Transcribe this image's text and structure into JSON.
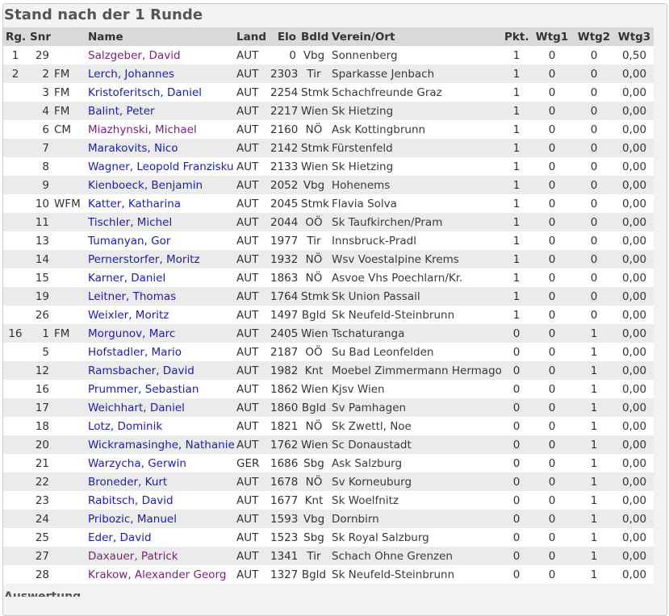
{
  "page": {
    "title": "Stand nach der 1 Runde",
    "footer_partial": "Auswertung"
  },
  "colors": {
    "header_bg": "#d9d9d9",
    "row_alt_bg": "#ebebeb",
    "link": "#1c1cb8",
    "link_visited": "#7a1f7a"
  },
  "table": {
    "headers": {
      "rg": "Rg.",
      "snr": "Snr",
      "title": "",
      "name": "Name",
      "land": "Land",
      "elo": "Elo",
      "bdld": "Bdld",
      "verein": "Verein/Ort",
      "pkt": "Pkt.",
      "wtg1": "Wtg1",
      "wtg2": "Wtg2",
      "wtg3": "Wtg3"
    },
    "rows": [
      {
        "rg": "1",
        "snr": "29",
        "title": "",
        "name": "Salzgeber, David",
        "visited": true,
        "land": "AUT",
        "elo": "0",
        "bdld": "Vbg",
        "verein": "Sonnenberg",
        "pkt": "1",
        "wtg1": "0",
        "wtg2": "0",
        "wtg3": "0,50"
      },
      {
        "rg": "2",
        "snr": "2",
        "title": "FM",
        "name": "Lerch, Johannes",
        "visited": false,
        "land": "AUT",
        "elo": "2303",
        "bdld": "Tir",
        "verein": "Sparkasse Jenbach",
        "pkt": "1",
        "wtg1": "0",
        "wtg2": "0",
        "wtg3": "0,00"
      },
      {
        "rg": "",
        "snr": "3",
        "title": "FM",
        "name": "Kristoferitsch, Daniel",
        "visited": false,
        "land": "AUT",
        "elo": "2254",
        "bdld": "Stmk",
        "verein": "Schachfreunde Graz",
        "pkt": "1",
        "wtg1": "0",
        "wtg2": "0",
        "wtg3": "0,00"
      },
      {
        "rg": "",
        "snr": "4",
        "title": "FM",
        "name": "Balint, Peter",
        "visited": false,
        "land": "AUT",
        "elo": "2217",
        "bdld": "Wien",
        "verein": "Sk Hietzing",
        "pkt": "1",
        "wtg1": "0",
        "wtg2": "0",
        "wtg3": "0,00"
      },
      {
        "rg": "",
        "snr": "6",
        "title": "CM",
        "name": "Miazhynski, Michael",
        "visited": true,
        "land": "AUT",
        "elo": "2160",
        "bdld": "NÖ",
        "verein": "Ask Kottingbrunn",
        "pkt": "1",
        "wtg1": "0",
        "wtg2": "0",
        "wtg3": "0,00"
      },
      {
        "rg": "",
        "snr": "7",
        "title": "",
        "name": "Marakovits, Nico",
        "visited": false,
        "land": "AUT",
        "elo": "2142",
        "bdld": "Stmk",
        "verein": "Fürstenfeld",
        "pkt": "1",
        "wtg1": "0",
        "wtg2": "0",
        "wtg3": "0,00"
      },
      {
        "rg": "",
        "snr": "8",
        "title": "",
        "name": "Wagner, Leopold Franziskus",
        "visited": false,
        "land": "AUT",
        "elo": "2133",
        "bdld": "Wien",
        "verein": "Sk Hietzing",
        "pkt": "1",
        "wtg1": "0",
        "wtg2": "0",
        "wtg3": "0,00"
      },
      {
        "rg": "",
        "snr": "9",
        "title": "",
        "name": "Kienboeck, Benjamin",
        "visited": false,
        "land": "AUT",
        "elo": "2052",
        "bdld": "Vbg",
        "verein": "Hohenems",
        "pkt": "1",
        "wtg1": "0",
        "wtg2": "0",
        "wtg3": "0,00"
      },
      {
        "rg": "",
        "snr": "10",
        "title": "WFM",
        "name": "Katter, Katharina",
        "visited": false,
        "land": "AUT",
        "elo": "2045",
        "bdld": "Stmk",
        "verein": "Flavia Solva",
        "pkt": "1",
        "wtg1": "0",
        "wtg2": "0",
        "wtg3": "0,00"
      },
      {
        "rg": "",
        "snr": "11",
        "title": "",
        "name": "Tischler, Michel",
        "visited": false,
        "land": "AUT",
        "elo": "2044",
        "bdld": "OÖ",
        "verein": "Sk Taufkirchen/Pram",
        "pkt": "1",
        "wtg1": "0",
        "wtg2": "0",
        "wtg3": "0,00"
      },
      {
        "rg": "",
        "snr": "13",
        "title": "",
        "name": "Tumanyan, Gor",
        "visited": false,
        "land": "AUT",
        "elo": "1977",
        "bdld": "Tir",
        "verein": "Innsbruck-Pradl",
        "pkt": "1",
        "wtg1": "0",
        "wtg2": "0",
        "wtg3": "0,00"
      },
      {
        "rg": "",
        "snr": "14",
        "title": "",
        "name": "Pernerstorfer, Moritz",
        "visited": false,
        "land": "AUT",
        "elo": "1932",
        "bdld": "NÖ",
        "verein": "Wsv Voestalpine Krems",
        "pkt": "1",
        "wtg1": "0",
        "wtg2": "0",
        "wtg3": "0,00"
      },
      {
        "rg": "",
        "snr": "15",
        "title": "",
        "name": "Karner, Daniel",
        "visited": false,
        "land": "AUT",
        "elo": "1863",
        "bdld": "NÖ",
        "verein": "Asvoe Vhs Poechlarn/Kr.",
        "pkt": "1",
        "wtg1": "0",
        "wtg2": "0",
        "wtg3": "0,00"
      },
      {
        "rg": "",
        "snr": "19",
        "title": "",
        "name": "Leitner, Thomas",
        "visited": false,
        "land": "AUT",
        "elo": "1764",
        "bdld": "Stmk",
        "verein": "Sk Union Passail",
        "pkt": "1",
        "wtg1": "0",
        "wtg2": "0",
        "wtg3": "0,00"
      },
      {
        "rg": "",
        "snr": "26",
        "title": "",
        "name": "Weixler, Moritz",
        "visited": false,
        "land": "AUT",
        "elo": "1497",
        "bdld": "Bgld",
        "verein": "Sk Neufeld-Steinbrunn",
        "pkt": "1",
        "wtg1": "0",
        "wtg2": "0",
        "wtg3": "0,00"
      },
      {
        "rg": "16",
        "snr": "1",
        "title": "FM",
        "name": "Morgunov, Marc",
        "visited": false,
        "land": "AUT",
        "elo": "2405",
        "bdld": "Wien",
        "verein": "Tschaturanga",
        "pkt": "0",
        "wtg1": "0",
        "wtg2": "1",
        "wtg3": "0,00"
      },
      {
        "rg": "",
        "snr": "5",
        "title": "",
        "name": "Hofstadler, Mario",
        "visited": false,
        "land": "AUT",
        "elo": "2187",
        "bdld": "OÖ",
        "verein": "Su Bad Leonfelden",
        "pkt": "0",
        "wtg1": "0",
        "wtg2": "1",
        "wtg3": "0,00"
      },
      {
        "rg": "",
        "snr": "12",
        "title": "",
        "name": "Ramsbacher, David",
        "visited": false,
        "land": "AUT",
        "elo": "1982",
        "bdld": "Knt",
        "verein": "Moebel Zimmermann Hermagor",
        "pkt": "0",
        "wtg1": "0",
        "wtg2": "1",
        "wtg3": "0,00"
      },
      {
        "rg": "",
        "snr": "16",
        "title": "",
        "name": "Prummer, Sebastian",
        "visited": false,
        "land": "AUT",
        "elo": "1862",
        "bdld": "Wien",
        "verein": "Kjsv Wien",
        "pkt": "0",
        "wtg1": "0",
        "wtg2": "1",
        "wtg3": "0,00"
      },
      {
        "rg": "",
        "snr": "17",
        "title": "",
        "name": "Weichhart, Daniel",
        "visited": false,
        "land": "AUT",
        "elo": "1860",
        "bdld": "Bgld",
        "verein": "Sv Pamhagen",
        "pkt": "0",
        "wtg1": "0",
        "wtg2": "1",
        "wtg3": "0,00"
      },
      {
        "rg": "",
        "snr": "18",
        "title": "",
        "name": "Lotz, Dominik",
        "visited": false,
        "land": "AUT",
        "elo": "1821",
        "bdld": "NÖ",
        "verein": "Sk Zwettl, Noe",
        "pkt": "0",
        "wtg1": "0",
        "wtg2": "1",
        "wtg3": "0,00"
      },
      {
        "rg": "",
        "snr": "20",
        "title": "",
        "name": "Wickramasinghe, Nathaniel",
        "visited": false,
        "land": "AUT",
        "elo": "1762",
        "bdld": "Wien",
        "verein": "Sc Donaustadt",
        "pkt": "0",
        "wtg1": "0",
        "wtg2": "1",
        "wtg3": "0,00"
      },
      {
        "rg": "",
        "snr": "21",
        "title": "",
        "name": "Warzycha, Gerwin",
        "visited": false,
        "land": "GER",
        "elo": "1686",
        "bdld": "Sbg",
        "verein": "Ask Salzburg",
        "pkt": "0",
        "wtg1": "0",
        "wtg2": "1",
        "wtg3": "0,00"
      },
      {
        "rg": "",
        "snr": "22",
        "title": "",
        "name": "Broneder, Kurt",
        "visited": false,
        "land": "AUT",
        "elo": "1678",
        "bdld": "NÖ",
        "verein": "Sv Korneuburg",
        "pkt": "0",
        "wtg1": "0",
        "wtg2": "1",
        "wtg3": "0,00"
      },
      {
        "rg": "",
        "snr": "23",
        "title": "",
        "name": "Rabitsch, David",
        "visited": false,
        "land": "AUT",
        "elo": "1677",
        "bdld": "Knt",
        "verein": "Sk Woelfnitz",
        "pkt": "0",
        "wtg1": "0",
        "wtg2": "1",
        "wtg3": "0,00"
      },
      {
        "rg": "",
        "snr": "24",
        "title": "",
        "name": "Pribozic, Manuel",
        "visited": false,
        "land": "AUT",
        "elo": "1593",
        "bdld": "Vbg",
        "verein": "Dornbirn",
        "pkt": "0",
        "wtg1": "0",
        "wtg2": "1",
        "wtg3": "0,00"
      },
      {
        "rg": "",
        "snr": "25",
        "title": "",
        "name": "Eder, David",
        "visited": false,
        "land": "AUT",
        "elo": "1523",
        "bdld": "Sbg",
        "verein": "Sk Royal Salzburg",
        "pkt": "0",
        "wtg1": "0",
        "wtg2": "1",
        "wtg3": "0,00"
      },
      {
        "rg": "",
        "snr": "27",
        "title": "",
        "name": "Daxauer, Patrick",
        "visited": true,
        "land": "AUT",
        "elo": "1341",
        "bdld": "Tir",
        "verein": "Schach Ohne Grenzen",
        "pkt": "0",
        "wtg1": "0",
        "wtg2": "1",
        "wtg3": "0,00"
      },
      {
        "rg": "",
        "snr": "28",
        "title": "",
        "name": "Krakow, Alexander Georg",
        "visited": true,
        "land": "AUT",
        "elo": "1327",
        "bdld": "Bgld",
        "verein": "Sk Neufeld-Steinbrunn",
        "pkt": "0",
        "wtg1": "0",
        "wtg2": "1",
        "wtg3": "0,00"
      }
    ]
  }
}
